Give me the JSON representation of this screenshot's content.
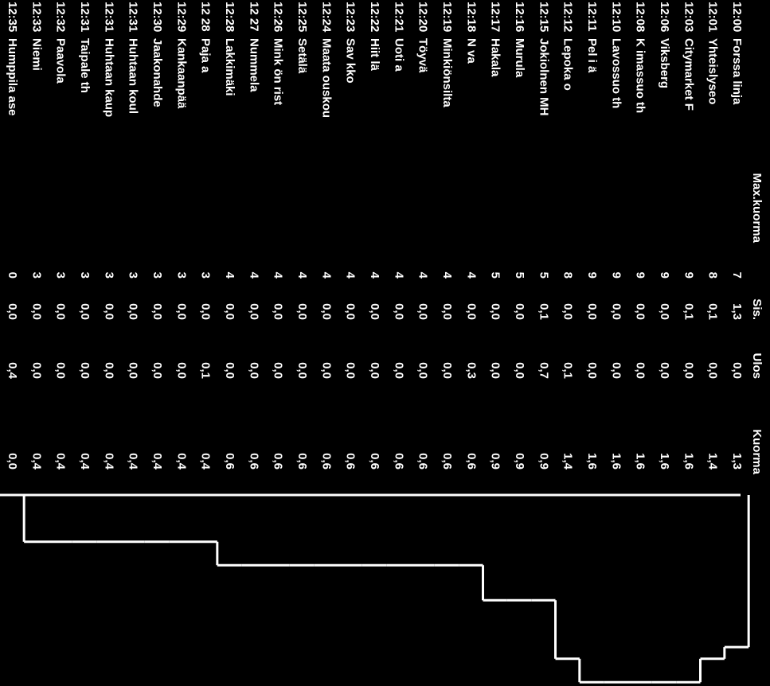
{
  "header": {
    "max": "Max.kuorma",
    "sis": "Sis.",
    "ulos": "Ulos",
    "kuorma": "Kuorma"
  },
  "table": {
    "rows": [
      {
        "time": "12:00",
        "stop": "Forssa linja",
        "max": 7,
        "sis": "1,3",
        "ulos": "0,0",
        "kuorma": 1.3,
        "kuorma_label": "1,3"
      },
      {
        "time": "12:01",
        "stop": "Yhteislyseo",
        "max": 8,
        "sis": "0,1",
        "ulos": "0,0",
        "kuorma": 1.4,
        "kuorma_label": "1,4"
      },
      {
        "time": "12:03",
        "stop": "Citymarket F",
        "max": 9,
        "sis": "0,1",
        "ulos": "0,0",
        "kuorma": 1.6,
        "kuorma_label": "1,6"
      },
      {
        "time": "12:06",
        "stop": "Viksberg",
        "max": 9,
        "sis": "0,0",
        "ulos": "0,0",
        "kuorma": 1.6,
        "kuorma_label": "1,6"
      },
      {
        "time": "12:08",
        "stop": "K imassuo th",
        "max": 9,
        "sis": "0,0",
        "ulos": "0,0",
        "kuorma": 1.6,
        "kuorma_label": "1,6"
      },
      {
        "time": "12:10",
        "stop": "Lavossuo th",
        "max": 9,
        "sis": "0,0",
        "ulos": "0,0",
        "kuorma": 1.6,
        "kuorma_label": "1,6"
      },
      {
        "time": "12:11",
        "stop": "Pel i ä",
        "max": 9,
        "sis": "0,0",
        "ulos": "0,0",
        "kuorma": 1.6,
        "kuorma_label": "1,6"
      },
      {
        "time": "12:12",
        "stop": "Lepoka o",
        "max": 8,
        "sis": "0,0",
        "ulos": "0,1",
        "kuorma": 1.4,
        "kuorma_label": "1,4"
      },
      {
        "time": "12:15",
        "stop": "Jokiolnen MH",
        "max": 5,
        "sis": "0,1",
        "ulos": "0,7",
        "kuorma": 0.9,
        "kuorma_label": "0,9"
      },
      {
        "time": "12:16",
        "stop": "Murula",
        "max": 5,
        "sis": "0,0",
        "ulos": "0,0",
        "kuorma": 0.9,
        "kuorma_label": "0,9"
      },
      {
        "time": "12:17",
        "stop": "Hakala",
        "max": 5,
        "sis": "0,0",
        "ulos": "0,0",
        "kuorma": 0.9,
        "kuorma_label": "0,9"
      },
      {
        "time": "12:18",
        "stop": "N va",
        "max": 4,
        "sis": "0,0",
        "ulos": "0,3",
        "kuorma": 0.6,
        "kuorma_label": "0,6"
      },
      {
        "time": "12:19",
        "stop": "Minkiönsilta",
        "max": 4,
        "sis": "0,0",
        "ulos": "0,0",
        "kuorma": 0.6,
        "kuorma_label": "0,6"
      },
      {
        "time": "12:20",
        "stop": "Töyvä",
        "max": 4,
        "sis": "0,0",
        "ulos": "0,0",
        "kuorma": 0.6,
        "kuorma_label": "0,6"
      },
      {
        "time": "12:21",
        "stop": "Uoti a",
        "max": 4,
        "sis": "0,0",
        "ulos": "0,0",
        "kuorma": 0.6,
        "kuorma_label": "0,6"
      },
      {
        "time": "12:22",
        "stop": "Hiit lä",
        "max": 4,
        "sis": "0,0",
        "ulos": "0,0",
        "kuorma": 0.6,
        "kuorma_label": "0,6"
      },
      {
        "time": "12:23",
        "stop": "Sav kko",
        "max": 4,
        "sis": "0,0",
        "ulos": "0,0",
        "kuorma": 0.6,
        "kuorma_label": "0,6"
      },
      {
        "time": "12:24",
        "stop": "Maata ouskou",
        "max": 4,
        "sis": "0,0",
        "ulos": "0,0",
        "kuorma": 0.6,
        "kuorma_label": "0,6"
      },
      {
        "time": "12:25",
        "stop": "Setälä",
        "max": 4,
        "sis": "0,0",
        "ulos": "0,0",
        "kuorma": 0.6,
        "kuorma_label": "0,6"
      },
      {
        "time": "12:26",
        "stop": "Mink ön rist",
        "max": 4,
        "sis": "0,0",
        "ulos": "0,0",
        "kuorma": 0.6,
        "kuorma_label": "0,6"
      },
      {
        "time": "12 27",
        "stop": "Nummela",
        "max": 4,
        "sis": "0,0",
        "ulos": "0,0",
        "kuorma": 0.6,
        "kuorma_label": "0,6"
      },
      {
        "time": "12:28",
        "stop": "Lakkimäki",
        "max": 4,
        "sis": "0,0",
        "ulos": "0,0",
        "kuorma": 0.6,
        "kuorma_label": "0,6"
      },
      {
        "time": "12 28",
        "stop": "Paja a",
        "max": 3,
        "sis": "0,0",
        "ulos": "0,1",
        "kuorma": 0.4,
        "kuorma_label": "0,4"
      },
      {
        "time": "12:29",
        "stop": "Kankaanpää",
        "max": 3,
        "sis": "0,0",
        "ulos": "0,0",
        "kuorma": 0.4,
        "kuorma_label": "0,4"
      },
      {
        "time": "12:30",
        "stop": "Jaakonahde",
        "max": 3,
        "sis": "0,0",
        "ulos": "0,0",
        "kuorma": 0.4,
        "kuorma_label": "0,4"
      },
      {
        "time": "12:31",
        "stop": "Huhtaan koul",
        "max": 3,
        "sis": "0,0",
        "ulos": "0,0",
        "kuorma": 0.4,
        "kuorma_label": "0,4"
      },
      {
        "time": "12:31",
        "stop": "Huhtaan kaup",
        "max": 3,
        "sis": "0,0",
        "ulos": "0,0",
        "kuorma": 0.4,
        "kuorma_label": "0,4"
      },
      {
        "time": "12:31",
        "stop": "Taipale th",
        "max": 3,
        "sis": "0,0",
        "ulos": "0,0",
        "kuorma": 0.4,
        "kuorma_label": "0,4"
      },
      {
        "time": "12:32",
        "stop": "Paavola",
        "max": 3,
        "sis": "0,0",
        "ulos": "0,0",
        "kuorma": 0.4,
        "kuorma_label": "0,4"
      },
      {
        "time": "12:33",
        "stop": "Niemi",
        "max": 3,
        "sis": "0,0",
        "ulos": "0,0",
        "kuorma": 0.4,
        "kuorma_label": "0,4"
      },
      {
        "time": "12:35",
        "stop": "Humppila ase",
        "max": 0,
        "sis": "0,0",
        "ulos": "0,4",
        "kuorma": 0,
        "kuorma_label": "0,0"
      }
    ]
  }
}
